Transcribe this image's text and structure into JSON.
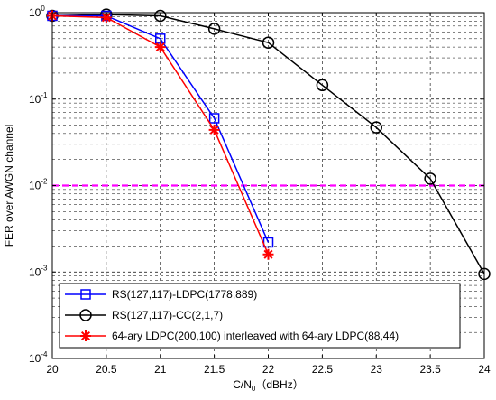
{
  "chart_data": {
    "type": "line",
    "title": "",
    "xlabel": {
      "main": "C/N",
      "sub": "0",
      "rest": "（dBHz）"
    },
    "ylabel": "FER over AWGN channel",
    "x_ticks": [
      "20",
      "20.5",
      "21",
      "21.5",
      "22",
      "22.5",
      "23",
      "23.5",
      "24"
    ],
    "y_ticks": [
      {
        "base": "10",
        "exp": "0",
        "value": 1
      },
      {
        "base": "10",
        "exp": "-1",
        "value": 0.1
      },
      {
        "base": "10",
        "exp": "-2",
        "value": 0.01
      },
      {
        "base": "10",
        "exp": "-3",
        "value": 0.001
      },
      {
        "base": "10",
        "exp": "-4",
        "value": 0.0001
      }
    ],
    "xlim": [
      20,
      24
    ],
    "ylim": [
      0.0001,
      1
    ],
    "yscale": "log",
    "grid": "dashed",
    "legend_position": "bottom-left",
    "series": [
      {
        "name": "RS(127,117)-LDPC(1778,889)",
        "color": "#0000ff",
        "marker": "square",
        "x": [
          20,
          20.5,
          21,
          21.5,
          22
        ],
        "y": [
          0.92,
          0.92,
          0.5,
          0.06,
          0.0022
        ]
      },
      {
        "name": "RS(127,117)-CC(2,1,7)",
        "color": "#000000",
        "marker": "circle",
        "x": [
          20,
          20.5,
          21,
          21.5,
          22,
          22.5,
          23,
          23.5,
          24
        ],
        "y": [
          0.92,
          0.95,
          0.92,
          0.65,
          0.45,
          0.145,
          0.047,
          0.012,
          0.00095
        ]
      },
      {
        "name": "64-ary LDPC(200,100) interleaved with 64-ary LDPC(88,44)",
        "color": "#ff0000",
        "marker": "star",
        "x": [
          20,
          20.5,
          21,
          21.5,
          22
        ],
        "y": [
          0.92,
          0.88,
          0.4,
          0.044,
          0.0016
        ]
      }
    ],
    "reference_line": {
      "y": 0.01,
      "color": "#ff00ff",
      "style": "dashed"
    }
  }
}
